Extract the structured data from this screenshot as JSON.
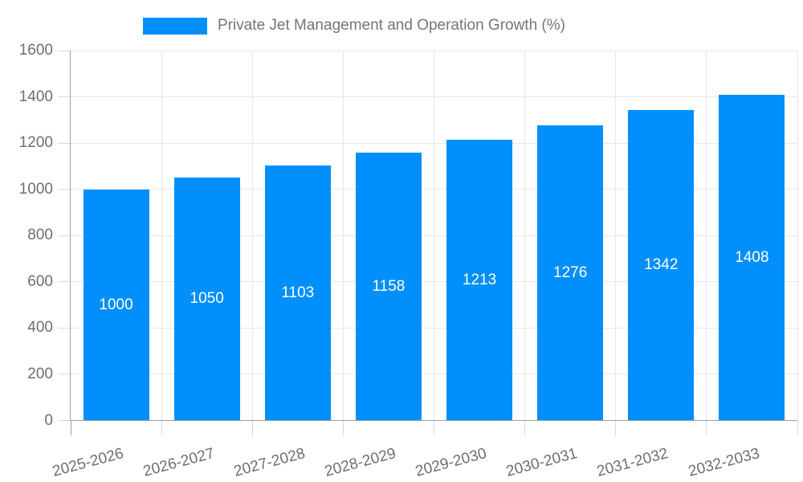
{
  "legend": {
    "series_label": "Private Jet Management and Operation Growth (%)"
  },
  "colors": {
    "bar": "#008FFB",
    "grid": "#e7e7e7",
    "tick": "#d9d9d9",
    "axis_line": "#a0a0a0",
    "axis_label": "#6e6e6e",
    "value_label": "#ffffff",
    "legend_text": "#757575",
    "background": "#ffffff"
  },
  "chart_data": {
    "type": "bar",
    "title": "Private Jet Management and Operation Growth (%)",
    "categories": [
      "2025-2026",
      "2026-2027",
      "2027-2028",
      "2028-2029",
      "2029-2030",
      "2030-2031",
      "2031-2032",
      "2032-2033"
    ],
    "series": [
      {
        "name": "Private Jet Management and Operation Growth (%)",
        "values": [
          1000,
          1050,
          1103,
          1158,
          1213,
          1276,
          1342,
          1408
        ]
      }
    ],
    "values": [
      1000,
      1050,
      1103,
      1158,
      1213,
      1276,
      1342,
      1408
    ],
    "xlabel": "",
    "ylabel": "",
    "ylim": [
      0,
      1600
    ],
    "yticks": [
      0,
      200,
      400,
      600,
      800,
      1000,
      1200,
      1400,
      1600
    ],
    "grid": true,
    "legend_position": "top",
    "value_label_position": "inside-center",
    "x_label_rotation_deg": -15
  }
}
